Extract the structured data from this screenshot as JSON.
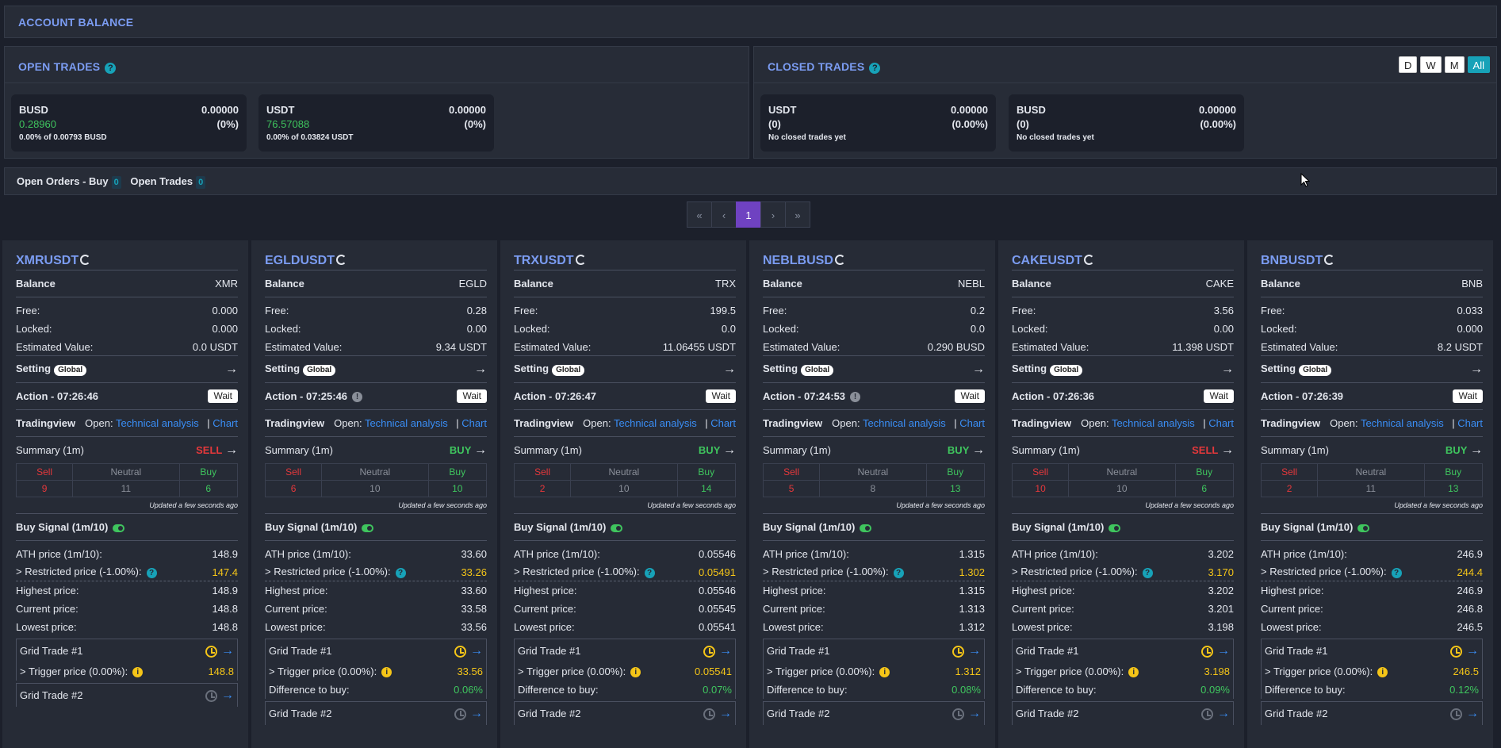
{
  "account_balance": {
    "title": "ACCOUNT BALANCE"
  },
  "open_trades": {
    "title": "OPEN TRADES",
    "cards": [
      {
        "asset": "BUSD",
        "amount": "0.00000",
        "value": "0.28960",
        "pct": "(0%)",
        "note": "0.00% of 0.00793 BUSD"
      },
      {
        "asset": "USDT",
        "amount": "0.00000",
        "value": "76.57088",
        "pct": "(0%)",
        "note": "0.00% of 0.03824 USDT"
      }
    ]
  },
  "closed_trades": {
    "title": "CLOSED TRADES",
    "periods": [
      "D",
      "W",
      "M",
      "All"
    ],
    "active_period": "All",
    "cards": [
      {
        "asset": "USDT",
        "amount": "0.00000",
        "count": "(0)",
        "pct": "(0.00%)",
        "note": "No closed trades yet"
      },
      {
        "asset": "BUSD",
        "amount": "0.00000",
        "count": "(0)",
        "pct": "(0.00%)",
        "note": "No closed trades yet"
      }
    ]
  },
  "orders_bar": {
    "open_orders_label": "Open Orders - Buy",
    "open_orders_count": "0",
    "open_trades_label": "Open Trades",
    "open_trades_count": "0"
  },
  "pagination": {
    "first": "«",
    "prev": "‹",
    "page": "1",
    "next": "›",
    "last": "»"
  },
  "labels": {
    "balance": "Balance",
    "free": "Free:",
    "locked": "Locked:",
    "estimated": "Estimated Value:",
    "setting": "Setting",
    "global": "Global",
    "tradingview": "Tradingview",
    "open": "Open:",
    "technical": "Technical analysis",
    "sep": "|",
    "chart": "Chart",
    "summary": "Summary (1m)",
    "sell": "Sell",
    "neutral": "Neutral",
    "buy": "Buy",
    "updated": "Updated a few seconds ago",
    "buy_signal": "Buy Signal (1m/10)",
    "ath": "ATH price (1m/10):",
    "restricted": "> Restricted price (-1.00%):",
    "highest": "Highest price:",
    "current": "Current price:",
    "lowest": "Lowest price:",
    "grid1": "Grid Trade #1",
    "trigger": "> Trigger price (0.00%):",
    "diff": "Difference to buy:",
    "grid2": "Grid Trade #2",
    "wait": "Wait"
  },
  "symbols": [
    {
      "symbol": "XMRUSDT",
      "asset": "XMR",
      "free": "0.000",
      "locked": "0.000",
      "est": "0.0 USDT",
      "action": "Action - 07:26:46",
      "action_info": false,
      "signal": "SELL",
      "sell": "9",
      "neutral": "11",
      "buy": "6",
      "ath": "148.9",
      "restricted": "147.4",
      "highest": "148.9",
      "current": "148.8",
      "lowest": "148.8",
      "trigger": "148.8",
      "diff": ""
    },
    {
      "symbol": "EGLDUSDT",
      "asset": "EGLD",
      "free": "0.28",
      "locked": "0.00",
      "est": "9.34 USDT",
      "action": "Action - 07:25:46",
      "action_info": true,
      "signal": "BUY",
      "sell": "6",
      "neutral": "10",
      "buy": "10",
      "ath": "33.60",
      "restricted": "33.26",
      "highest": "33.60",
      "current": "33.58",
      "lowest": "33.56",
      "trigger": "33.56",
      "diff": "0.06%"
    },
    {
      "symbol": "TRXUSDT",
      "asset": "TRX",
      "free": "199.5",
      "locked": "0.0",
      "est": "11.06455 USDT",
      "action": "Action - 07:26:47",
      "action_info": false,
      "signal": "BUY",
      "sell": "2",
      "neutral": "10",
      "buy": "14",
      "ath": "0.05546",
      "restricted": "0.05491",
      "highest": "0.05546",
      "current": "0.05545",
      "lowest": "0.05541",
      "trigger": "0.05541",
      "diff": "0.07%"
    },
    {
      "symbol": "NEBLBUSD",
      "asset": "NEBL",
      "free": "0.2",
      "locked": "0.0",
      "est": "0.290 BUSD",
      "action": "Action - 07:24:53",
      "action_info": true,
      "signal": "BUY",
      "sell": "5",
      "neutral": "8",
      "buy": "13",
      "ath": "1.315",
      "restricted": "1.302",
      "highest": "1.315",
      "current": "1.313",
      "lowest": "1.312",
      "trigger": "1.312",
      "diff": "0.08%"
    },
    {
      "symbol": "CAKEUSDT",
      "asset": "CAKE",
      "free": "3.56",
      "locked": "0.00",
      "est": "11.398 USDT",
      "action": "Action - 07:26:36",
      "action_info": false,
      "signal": "SELL",
      "sell": "10",
      "neutral": "10",
      "buy": "6",
      "ath": "3.202",
      "restricted": "3.170",
      "highest": "3.202",
      "current": "3.201",
      "lowest": "3.198",
      "trigger": "3.198",
      "diff": "0.09%"
    },
    {
      "symbol": "BNBUSDT",
      "asset": "BNB",
      "free": "0.033",
      "locked": "0.000",
      "est": "8.2 USDT",
      "action": "Action - 07:26:39",
      "action_info": false,
      "signal": "BUY",
      "sell": "2",
      "neutral": "11",
      "buy": "13",
      "ath": "246.9",
      "restricted": "244.4",
      "highest": "246.9",
      "current": "246.8",
      "lowest": "246.5",
      "trigger": "246.5",
      "diff": "0.12%"
    }
  ]
}
